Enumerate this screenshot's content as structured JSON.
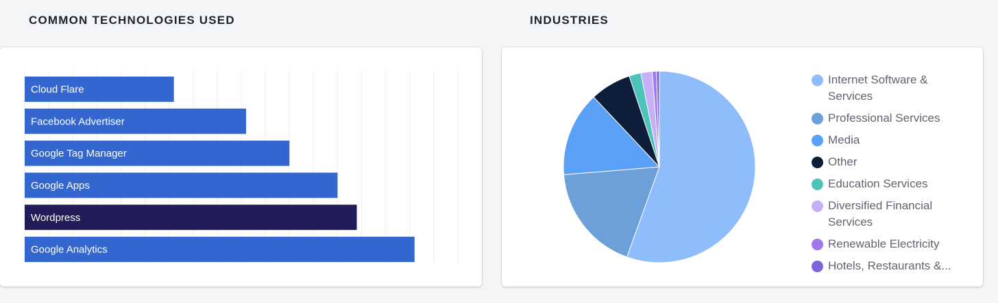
{
  "sections": {
    "technologies_title": "COMMON TECHNOLOGIES USED",
    "industries_title": "INDUSTRIES"
  },
  "chart_data": [
    {
      "type": "bar",
      "orientation": "horizontal",
      "categories": [
        "Cloud Flare",
        "Facebook Advertiser",
        "Google Tag Manager",
        "Google Apps",
        "Wordpress",
        "Google Analytics"
      ],
      "values": [
        31,
        46,
        55,
        65,
        69,
        81
      ],
      "xlim": [
        0,
        90
      ],
      "grid": true,
      "colors": [
        "#3367cf",
        "#3367cf",
        "#3367cf",
        "#3367cf",
        "#211d59",
        "#3367cf"
      ]
    },
    {
      "type": "pie",
      "labels": [
        "Internet Software & Services",
        "Professional Services",
        "Media",
        "Other",
        "Education Services",
        "Diversified Financial Services",
        "Renewable Electricity",
        "Hotels, Restaurants &..."
      ],
      "legend_text": [
        "Internet Software & Services",
        "Professional Services",
        "Media",
        "Other",
        "Education Services",
        "Diversified Financial Services",
        "Renewable Electricity",
        "Hotels, Restaurants &..."
      ],
      "values": [
        55.5,
        18.2,
        14.3,
        6.9,
        2.0,
        1.9,
        0.7,
        0.5
      ],
      "colors": [
        "#8fbdfb",
        "#6d9fd8",
        "#5aa0f7",
        "#0d1d3a",
        "#4ec3b9",
        "#c6b0f8",
        "#a077ee",
        "#7f63db"
      ],
      "legend_position": "right"
    }
  ]
}
